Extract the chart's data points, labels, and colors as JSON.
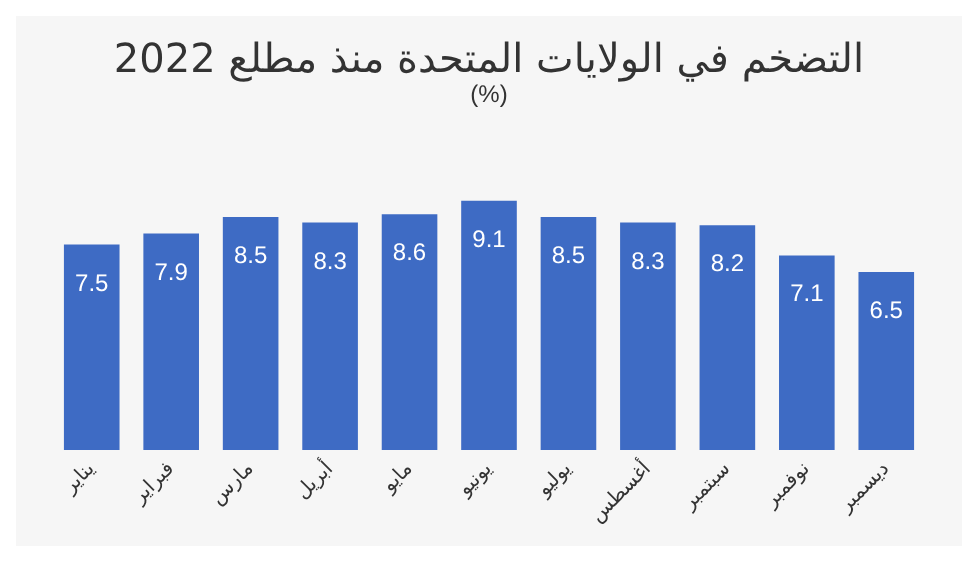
{
  "chart_data": {
    "type": "bar",
    "title": "التضخم في الولايات المتحدة منذ مطلع 2022",
    "subtitle": "(%)",
    "categories": [
      "يناير",
      "فبراير",
      "مارس",
      "أبريل",
      "مايو",
      "يونيو",
      "يوليو",
      "أغسطس",
      "سبتمبر",
      "نوفمبر",
      "ديسمبر"
    ],
    "values": [
      7.5,
      7.9,
      8.5,
      8.3,
      8.6,
      9.1,
      8.5,
      8.3,
      8.2,
      7.1,
      6.5
    ],
    "color": "#3e6bc4",
    "data_labels": true
  }
}
